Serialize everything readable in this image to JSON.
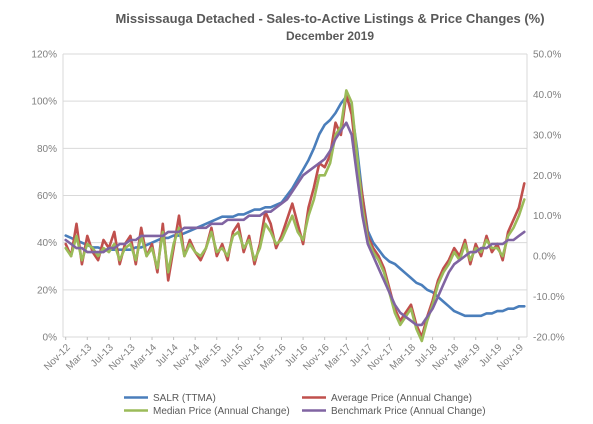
{
  "chart_data": {
    "type": "line",
    "title": "Mississauga Detached - Sales-to-Active Listings & Price Changes (%)",
    "subtitle": "December 2019",
    "xlabel": "",
    "ylabel": "",
    "y2label": "",
    "categories": [
      "Nov-12",
      "Dec-12",
      "Jan-13",
      "Feb-13",
      "Mar-13",
      "Apr-13",
      "May-13",
      "Jun-13",
      "Jul-13",
      "Aug-13",
      "Sep-13",
      "Oct-13",
      "Nov-13",
      "Dec-13",
      "Jan-14",
      "Feb-14",
      "Mar-14",
      "Apr-14",
      "May-14",
      "Jun-14",
      "Jul-14",
      "Aug-14",
      "Sep-14",
      "Oct-14",
      "Nov-14",
      "Dec-14",
      "Jan-15",
      "Feb-15",
      "Mar-15",
      "Apr-15",
      "May-15",
      "Jun-15",
      "Jul-15",
      "Aug-15",
      "Sep-15",
      "Oct-15",
      "Nov-15",
      "Dec-15",
      "Jan-16",
      "Feb-16",
      "Mar-16",
      "Apr-16",
      "May-16",
      "Jun-16",
      "Jul-16",
      "Aug-16",
      "Sep-16",
      "Oct-16",
      "Nov-16",
      "Dec-16",
      "Jan-17",
      "Feb-17",
      "Mar-17",
      "Apr-17",
      "May-17",
      "Jun-17",
      "Jul-17",
      "Aug-17",
      "Sep-17",
      "Oct-17",
      "Nov-17",
      "Dec-17",
      "Jan-18",
      "Feb-18",
      "Mar-18",
      "Apr-18",
      "May-18",
      "Jun-18",
      "Jul-18",
      "Aug-18",
      "Sep-18",
      "Oct-18",
      "Nov-18",
      "Dec-18",
      "Jan-19",
      "Feb-19",
      "Mar-19",
      "Apr-19",
      "May-19",
      "Jun-19",
      "Jul-19",
      "Aug-19",
      "Sep-19",
      "Oct-19",
      "Nov-19",
      "Dec-19"
    ],
    "xtick_labels": [
      "Nov-12",
      "Mar-13",
      "Jul-13",
      "Nov-13",
      "Mar-14",
      "Jul-14",
      "Nov-14",
      "Mar-15",
      "Jul-15",
      "Nov-15",
      "Mar-16",
      "Jul-16",
      "Nov-16",
      "Mar-17",
      "Jul-17",
      "Nov-17",
      "Mar-18",
      "Jul-18",
      "Nov-18",
      "Mar-19",
      "Jul-19",
      "Nov-19"
    ],
    "y_left": {
      "min": 0,
      "max": 120,
      "ticks": [
        "0%",
        "20%",
        "40%",
        "60%",
        "80%",
        "100%",
        "120%"
      ]
    },
    "y_right": {
      "min": -20,
      "max": 50,
      "ticks": [
        "-20.0%",
        "-10.0%",
        "0.0%",
        "10.0%",
        "20.0%",
        "30.0%",
        "40.0%",
        "50.0%"
      ]
    },
    "grid": true,
    "legend": "bottom",
    "series": [
      {
        "name": "SALR (TTMA)",
        "axis": "left",
        "color": "#4a7ebb",
        "values": [
          43,
          42,
          41,
          40,
          39,
          38,
          38,
          37,
          37,
          37,
          37,
          37,
          37,
          38,
          38,
          39,
          40,
          41,
          42,
          42,
          43,
          43,
          44,
          45,
          46,
          47,
          48,
          49,
          50,
          51,
          51,
          51,
          52,
          52,
          53,
          54,
          54,
          55,
          55,
          56,
          57,
          60,
          63,
          67,
          71,
          75,
          80,
          86,
          90,
          92,
          95,
          99,
          102,
          96,
          80,
          60,
          45,
          40,
          37,
          34,
          32,
          31,
          29,
          27,
          25,
          23,
          22,
          20,
          19,
          17,
          15,
          13,
          11,
          10,
          9,
          9,
          9,
          9,
          10,
          10,
          11,
          11,
          12,
          12,
          13,
          13
        ]
      },
      {
        "name": "Average Price (Annual Change)",
        "axis": "right",
        "color": "#c0504d",
        "values": [
          3,
          0,
          8,
          -2,
          5,
          1,
          -1,
          4,
          2,
          6,
          -2,
          3,
          5,
          -2,
          7,
          0,
          3,
          -4,
          8,
          -6,
          2,
          10,
          0,
          4,
          1,
          -1,
          2,
          7,
          0,
          3,
          -1,
          6,
          8,
          1,
          5,
          -2,
          3,
          11,
          8,
          2,
          5,
          9,
          13,
          8,
          3,
          12,
          17,
          23,
          22,
          25,
          33,
          30,
          40,
          35,
          23,
          15,
          5,
          2,
          0,
          -3,
          -8,
          -13,
          -16,
          -14,
          -12,
          -17,
          -20,
          -15,
          -11,
          -6,
          -3,
          -1,
          2,
          0,
          4,
          -2,
          3,
          0,
          5,
          1,
          3,
          -1,
          6,
          9,
          12,
          18
        ]
      },
      {
        "name": "Median Price (Annual Change)",
        "axis": "right",
        "color": "#9bbb59",
        "values": [
          2,
          0,
          5,
          -1,
          3,
          2,
          0,
          2,
          1,
          3,
          -1,
          2,
          3,
          -1,
          5,
          0,
          2,
          -3,
          6,
          -4,
          3,
          7,
          0,
          3,
          1,
          0,
          2,
          6,
          1,
          2,
          0,
          5,
          6,
          2,
          4,
          -1,
          2,
          8,
          6,
          3,
          4,
          7,
          10,
          6,
          4,
          10,
          14,
          20,
          20,
          23,
          30,
          32,
          41,
          38,
          25,
          12,
          4,
          1,
          -1,
          -4,
          -9,
          -14,
          -17,
          -15,
          -13,
          -18,
          -21,
          -16,
          -12,
          -7,
          -4,
          -2,
          1,
          -1,
          3,
          -1,
          2,
          1,
          4,
          2,
          2,
          0,
          5,
          7,
          10,
          14
        ]
      },
      {
        "name": "Benchmark Price (Annual Change)",
        "axis": "right",
        "color": "#8064a2",
        "values": [
          4,
          3,
          2,
          2,
          1,
          1,
          1,
          1,
          2,
          2,
          3,
          3,
          4,
          4,
          5,
          5,
          5,
          5,
          5,
          6,
          6,
          6,
          7,
          7,
          7,
          7,
          7,
          8,
          8,
          8,
          9,
          9,
          9,
          9,
          10,
          10,
          10,
          11,
          11,
          12,
          13,
          14,
          16,
          18,
          20,
          21,
          22,
          23,
          24,
          26,
          29,
          31,
          33,
          30,
          20,
          10,
          3,
          0,
          -3,
          -6,
          -9,
          -12,
          -14,
          -15,
          -16,
          -17,
          -17,
          -15,
          -13,
          -10,
          -7,
          -4,
          -2,
          -1,
          0,
          1,
          1,
          2,
          2,
          3,
          3,
          3,
          4,
          4,
          5,
          6
        ]
      }
    ]
  }
}
